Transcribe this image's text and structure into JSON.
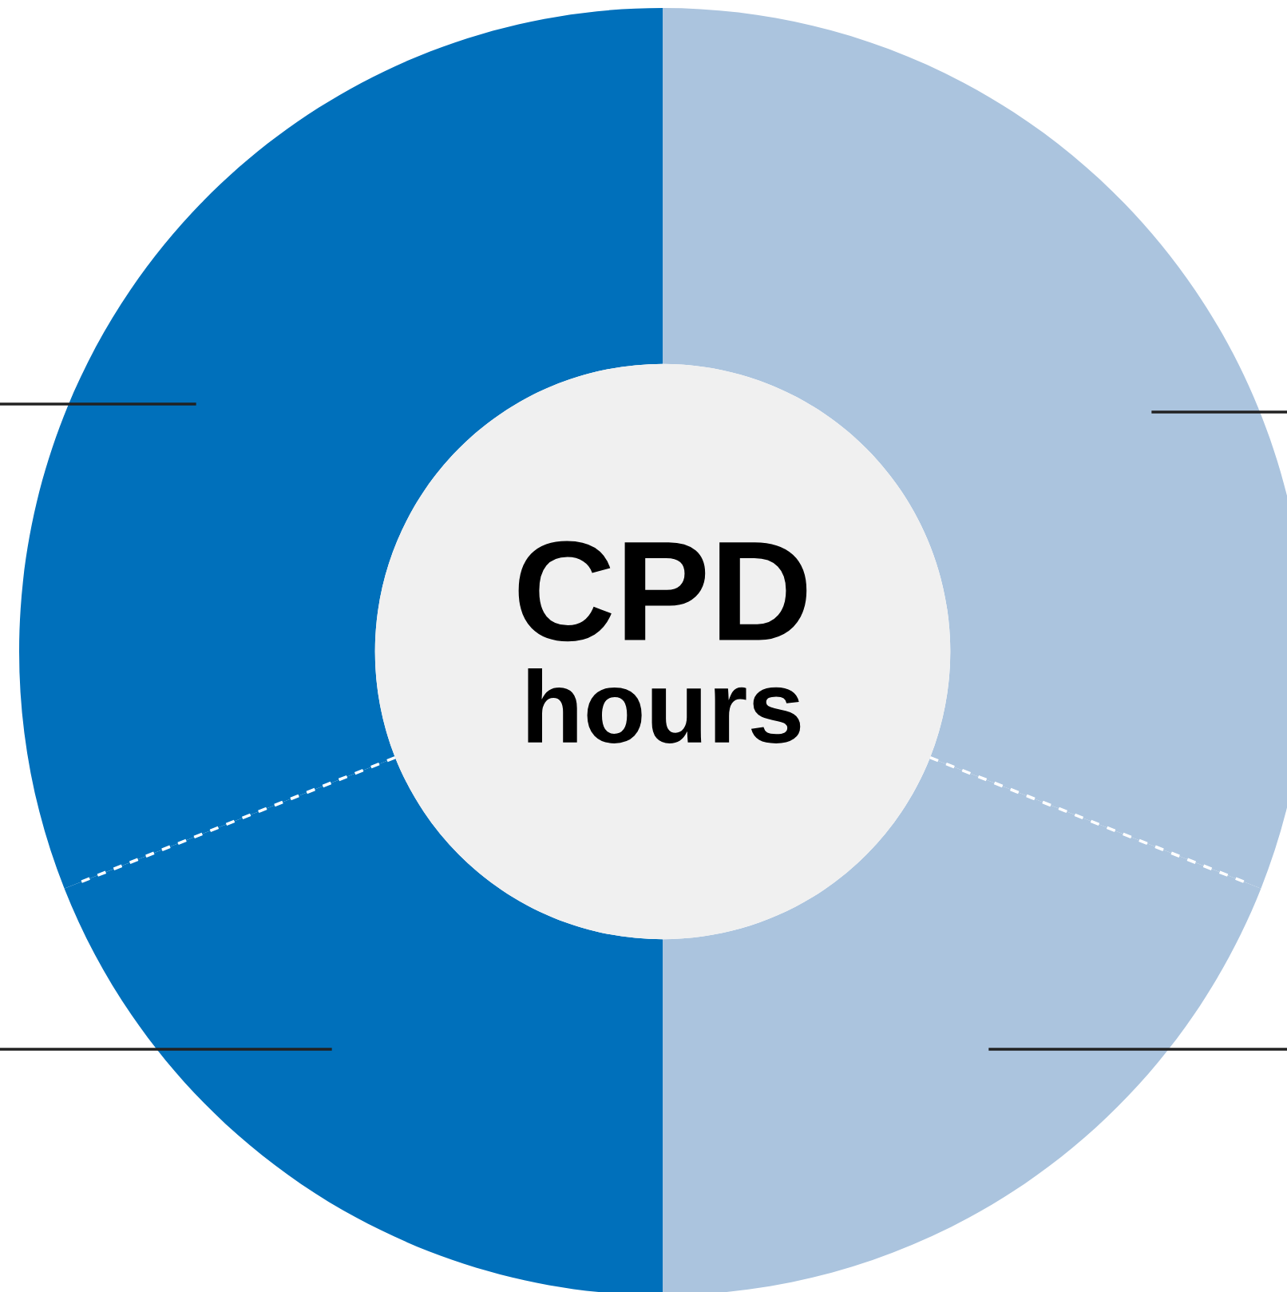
{
  "chart_data": {
    "type": "donut",
    "categories": [
      null,
      null,
      null,
      null
    ],
    "values": [
      31,
      19,
      19,
      31
    ],
    "colors": [
      "#abc4de",
      "#abc4de",
      "#0070bb",
      "#0070bb"
    ],
    "annotations": [
      "CPD",
      "hours"
    ]
  }
}
